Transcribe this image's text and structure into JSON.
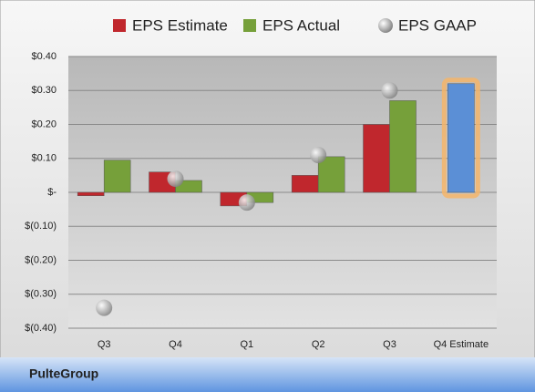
{
  "chart_data": {
    "type": "bar",
    "caption": "PulteGroup",
    "categories": [
      "Q3",
      "Q4",
      "Q1",
      "Q2",
      "Q3",
      "Q4 Estimate"
    ],
    "series": [
      {
        "name": "EPS Estimate",
        "color": "#c0272d",
        "values": [
          -0.01,
          0.06,
          -0.04,
          0.05,
          0.2,
          0.32
        ],
        "point_colors": [
          null,
          null,
          null,
          null,
          null,
          "#5b8fd6"
        ]
      },
      {
        "name": "EPS Actual",
        "color": "#76a03a",
        "values": [
          0.095,
          0.035,
          -0.03,
          0.105,
          0.27,
          null
        ]
      },
      {
        "name": "EPS GAAP",
        "color": "#a6a6a6",
        "marker": "circle",
        "values": [
          -0.34,
          0.04,
          -0.03,
          0.11,
          0.3,
          null
        ]
      }
    ],
    "ylim": [
      -0.4,
      0.4
    ],
    "yticks": [
      {
        "value": -0.4,
        "label": "$(0.40)"
      },
      {
        "value": -0.3,
        "label": "$(0.30)"
      },
      {
        "value": -0.2,
        "label": "$(0.20)"
      },
      {
        "value": -0.1,
        "label": "$(0.10)"
      },
      {
        "value": 0,
        "label": "$-"
      },
      {
        "value": 0.1,
        "label": "$0.10"
      },
      {
        "value": 0.2,
        "label": "$0.20"
      },
      {
        "value": 0.3,
        "label": "$0.30"
      },
      {
        "value": 0.4,
        "label": "$0.40"
      }
    ],
    "grid": true,
    "legend": "top"
  }
}
